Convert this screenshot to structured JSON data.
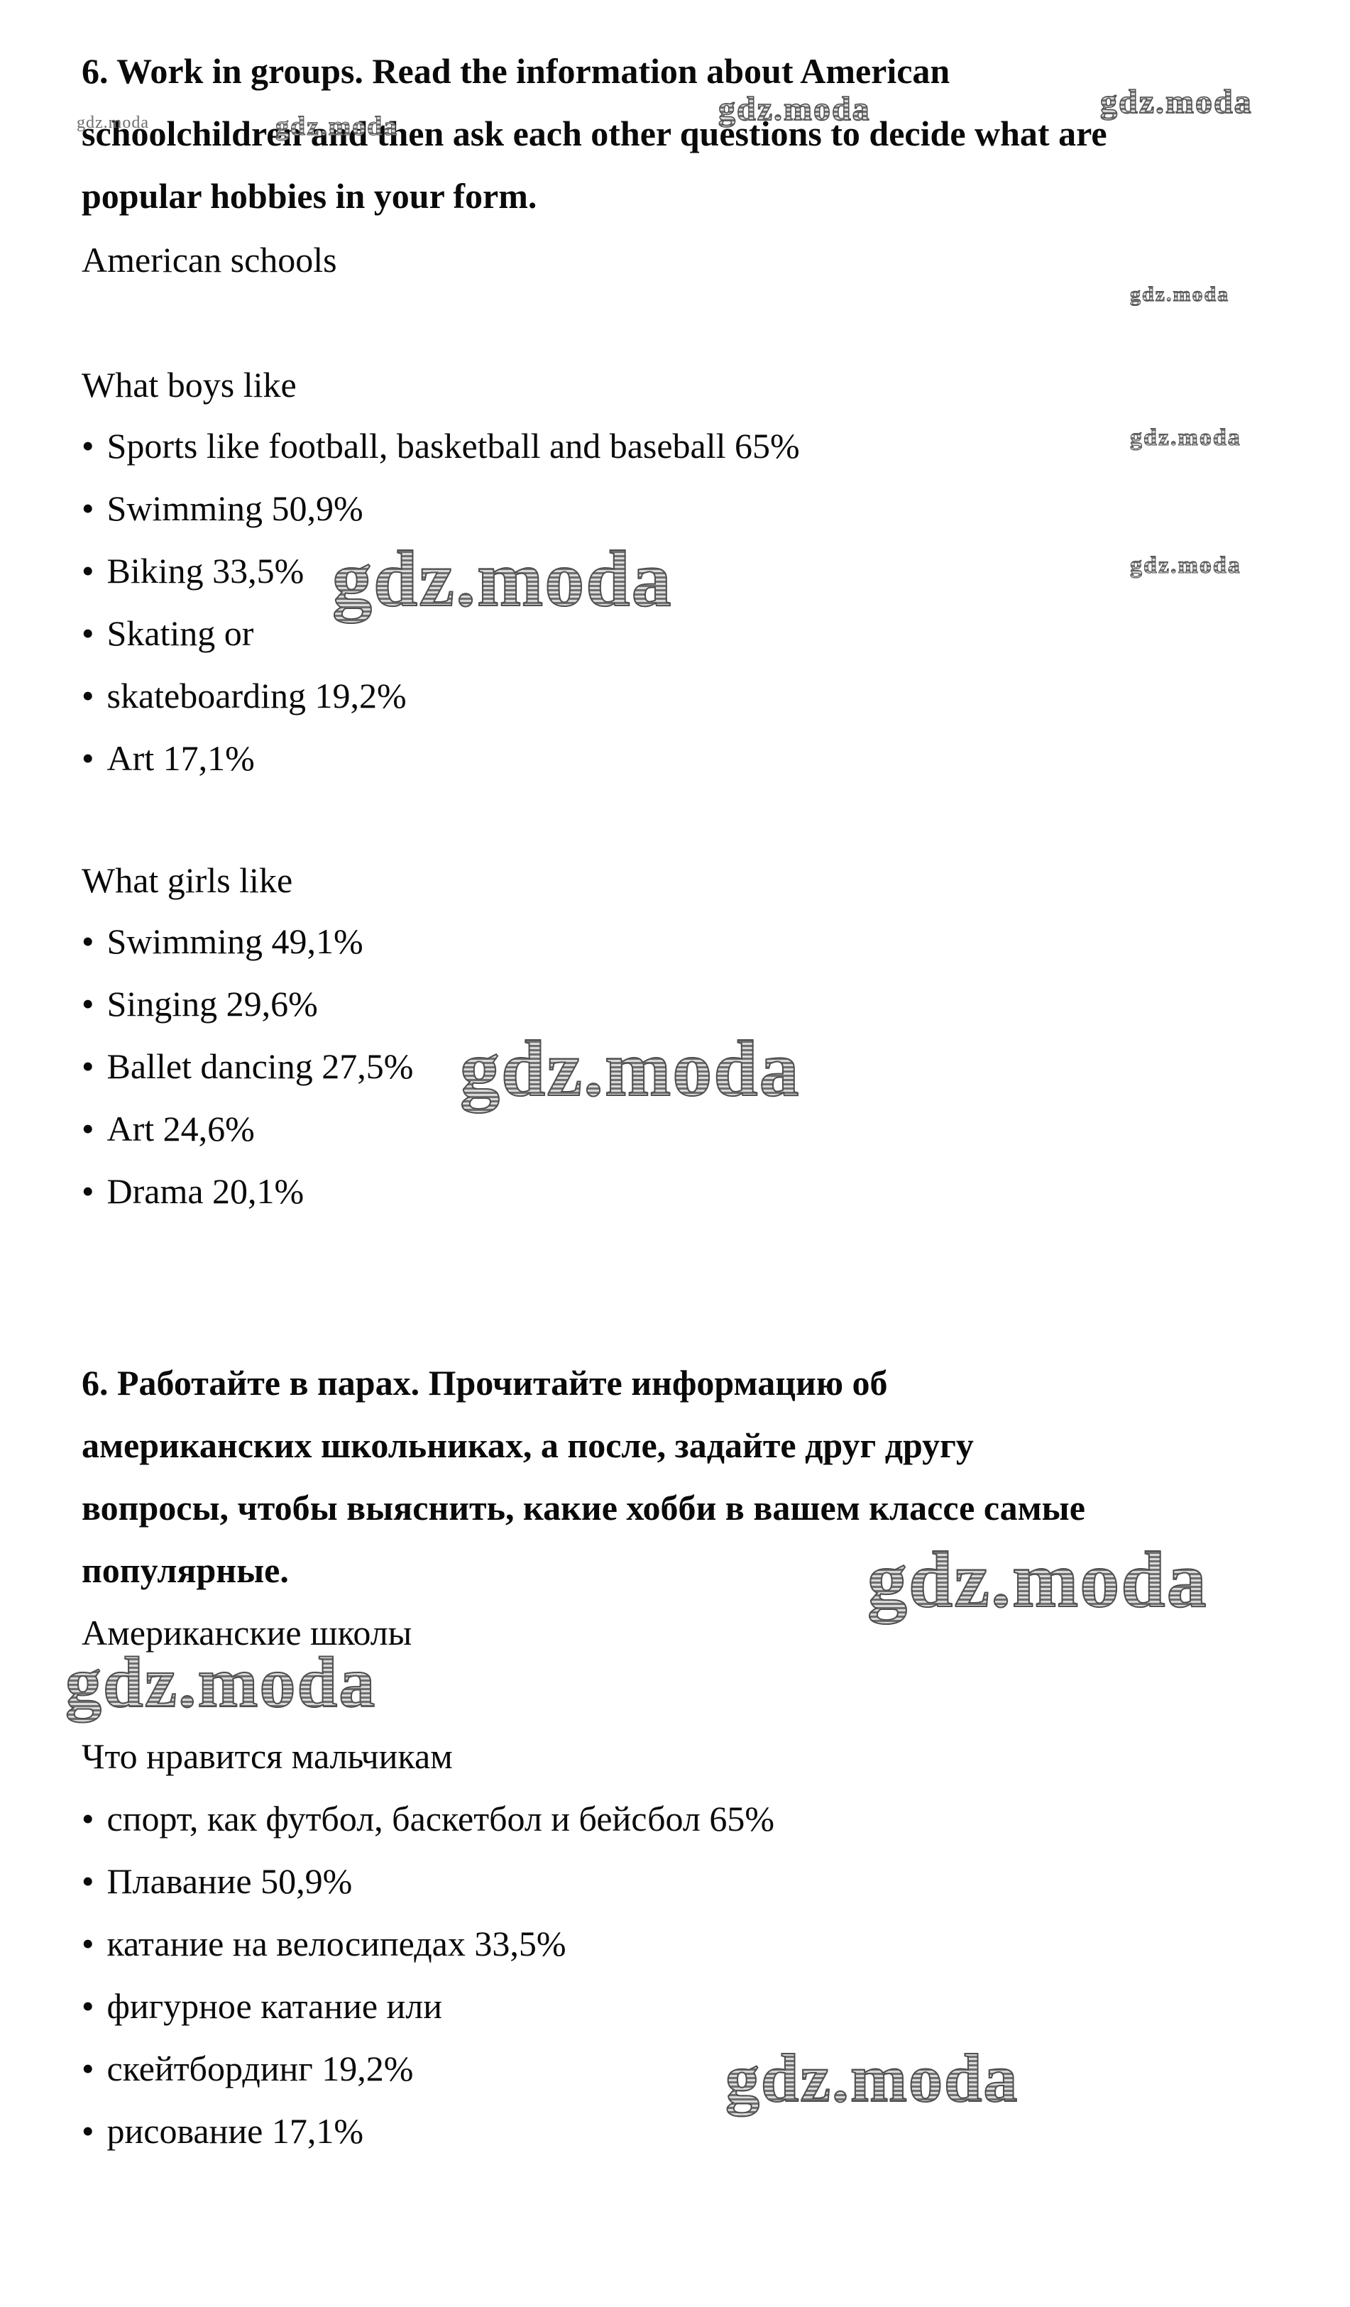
{
  "watermark": {
    "text": "gdz.moda"
  },
  "bullet": "•",
  "english": {
    "heading_lines": [
      "6. Work in groups. Read the information about American",
      "schoolchildren and then ask each other questions to decide what are",
      "popular hobbies in your form."
    ],
    "subtitle": "American schools",
    "boys_title": "What boys like",
    "boys_items": [
      "Sports like football, basketball and baseball 65%",
      "Swimming 50,9%",
      "Biking 33,5%",
      "Skating or",
      "skateboarding 19,2%",
      "Art 17,1%"
    ],
    "girls_title": "What girls like",
    "girls_items": [
      "Swimming 49,1%",
      "Singing 29,6%",
      "Ballet dancing 27,5%",
      "Art 24,6%",
      "Drama 20,1%"
    ]
  },
  "russian": {
    "heading_lines": [
      "6. Работайте в парах. Прочитайте информацию об",
      "американских школьниках, а после, задайте друг другу",
      "вопросы, чтобы выяснить, какие хобби в вашем классе самые",
      "популярные."
    ],
    "subtitle": "Американские школы",
    "boys_title": "Что нравится мальчикам",
    "boys_items": [
      "спорт, как футбол, баскетбол и бейсбол 65%",
      "Плавание 50,9%",
      "катание на велосипедах 33,5%",
      "фигурное катание или",
      "скейтбординг 19,2%",
      "рисование 17,1%"
    ]
  },
  "colors": {
    "background": "#ffffff",
    "text": "#0a0a0a",
    "watermark_small": "#6e6e6e",
    "watermark_outline": "#4f4f4f",
    "watermark_fill": "#b3b3b3"
  }
}
